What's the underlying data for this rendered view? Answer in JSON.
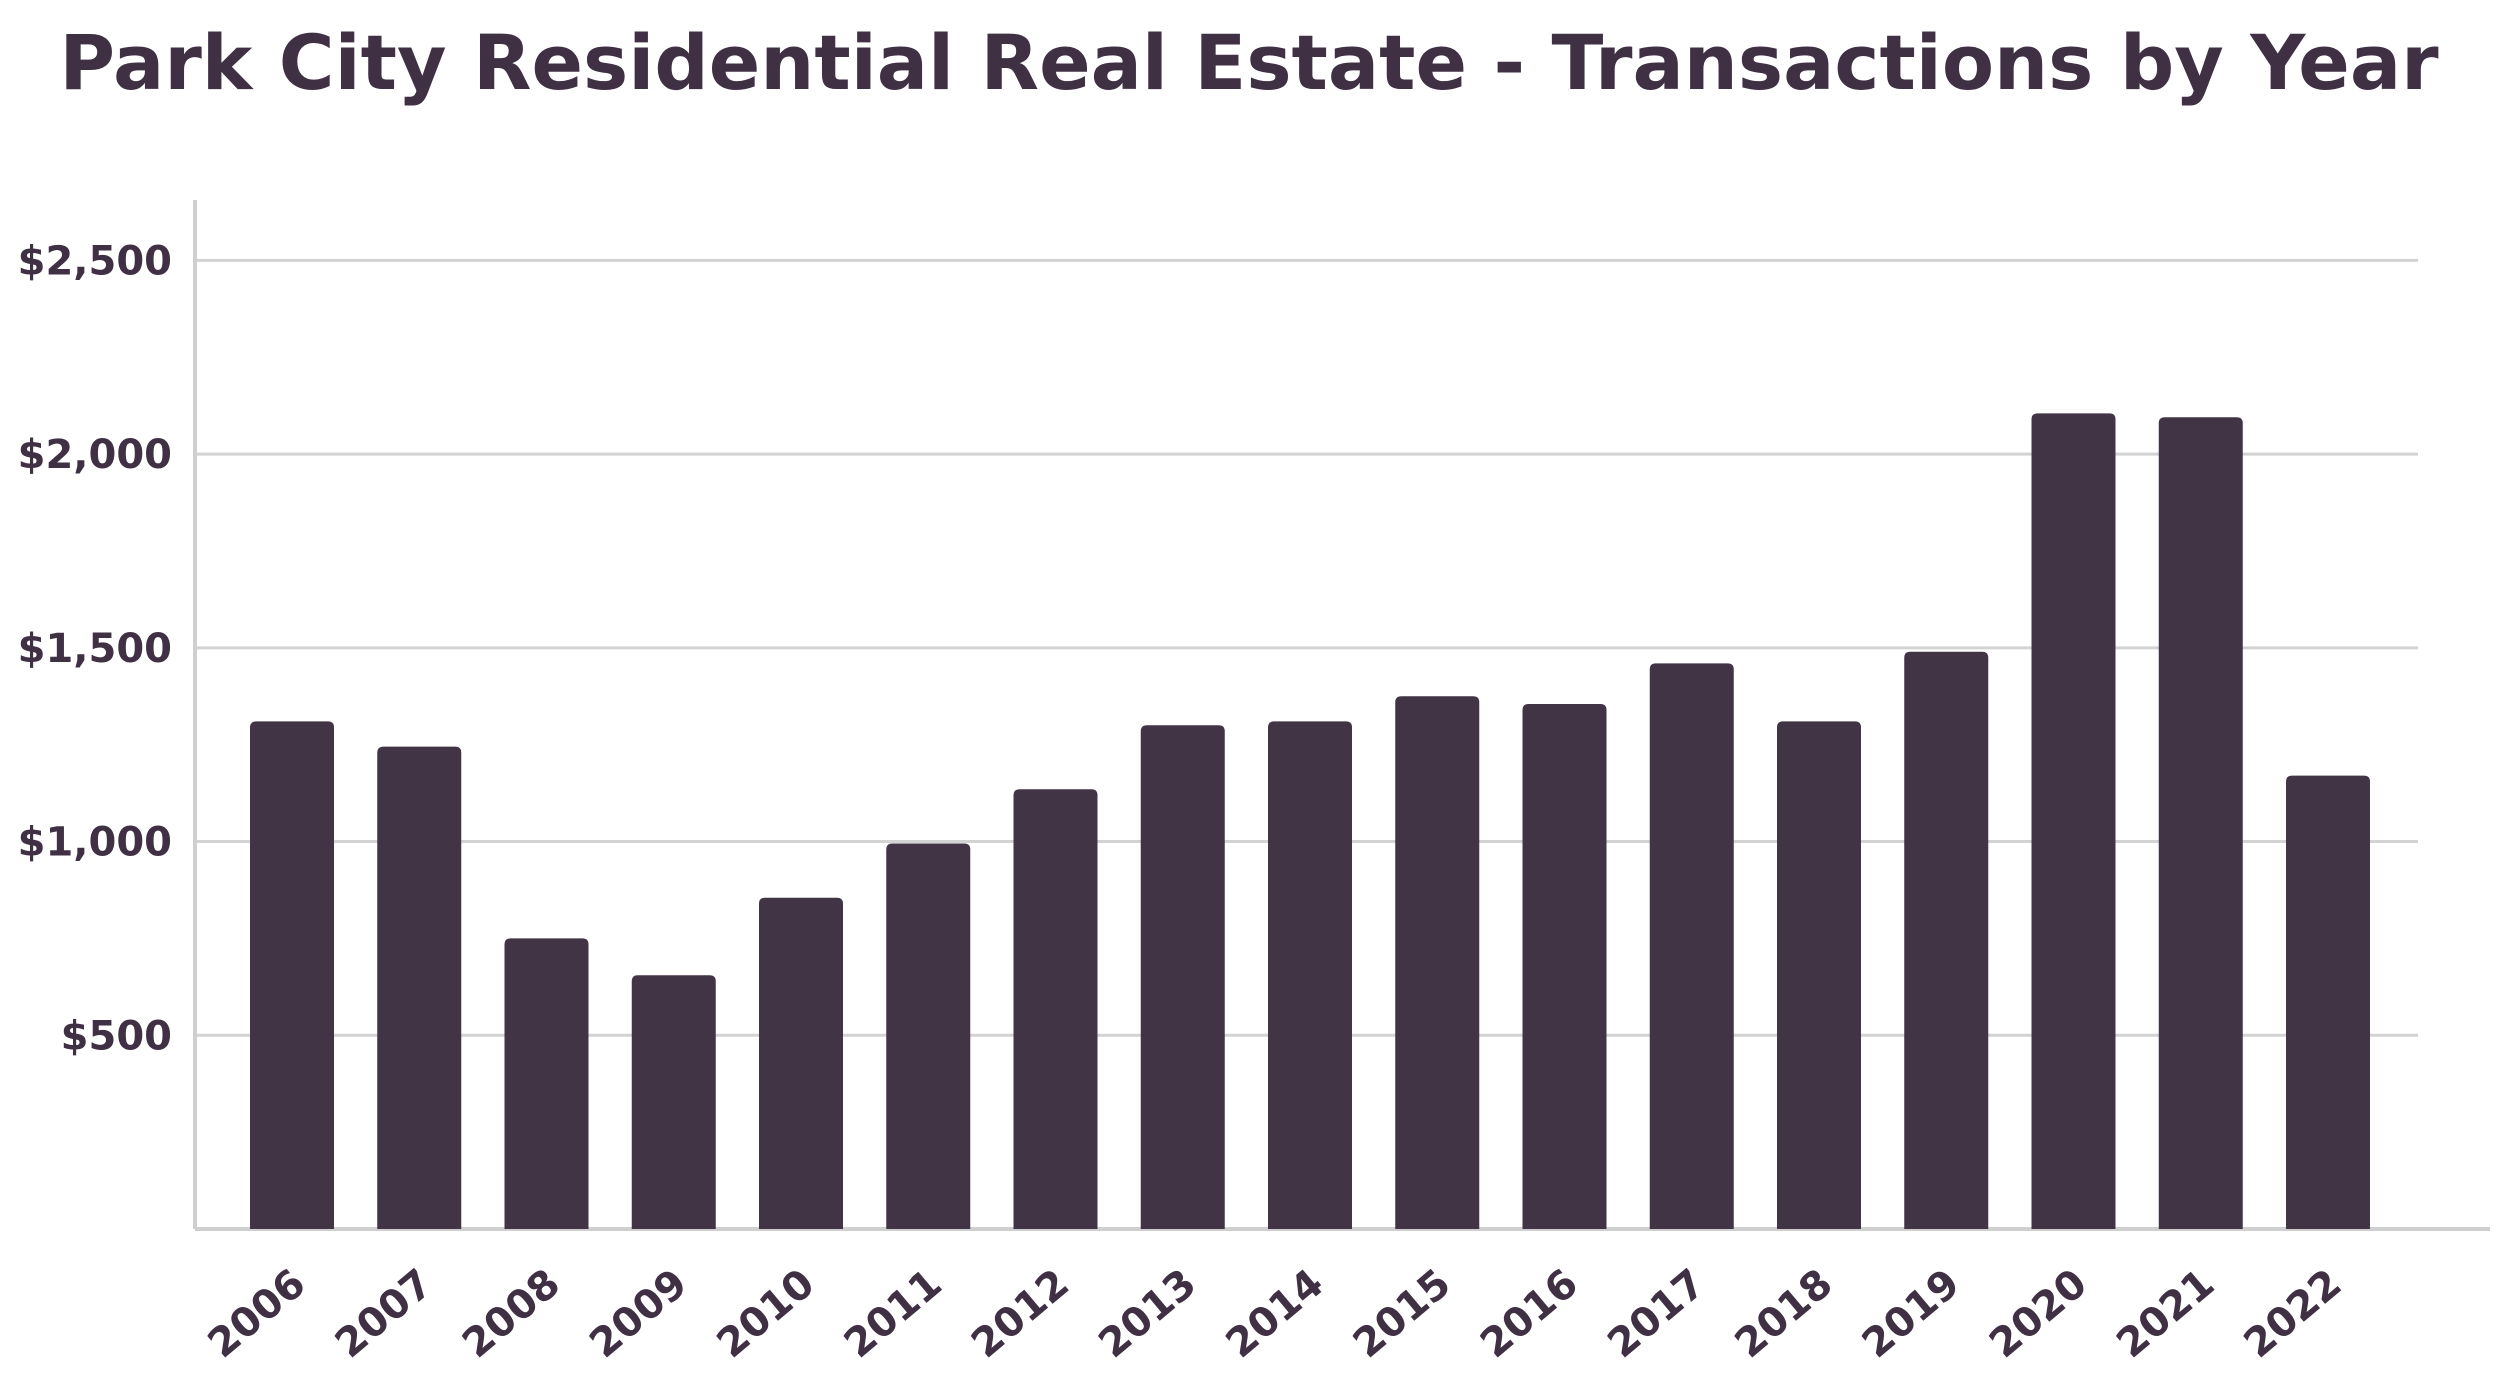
{
  "chart_data": {
    "type": "bar",
    "title": "Park City Residential Real Estate - Transactions by Year",
    "xlabel": "",
    "ylabel": "",
    "categories": [
      "2006",
      "2007",
      "2008",
      "2009",
      "2010",
      "2011",
      "2012",
      "2013",
      "2014",
      "2015",
      "2016",
      "2017",
      "2018",
      "2019",
      "2020",
      "2021",
      "2022"
    ],
    "values": [
      1310,
      1245,
      750,
      655,
      855,
      995,
      1135,
      1300,
      1310,
      1375,
      1355,
      1460,
      1310,
      1490,
      2105,
      2095,
      1170
    ],
    "ylim": [
      0,
      2630
    ],
    "yticks": [
      500,
      1000,
      1500,
      2000,
      2500
    ],
    "ytick_labels": [
      "$500",
      "$1,000",
      "$1,500",
      "$2,000",
      "$2,500"
    ],
    "grid": true,
    "legend": "none",
    "colors": {
      "bar": "#413445",
      "grid": "#d3d3d3",
      "axis": "#cfcfcf",
      "text": "#3f3044"
    }
  }
}
